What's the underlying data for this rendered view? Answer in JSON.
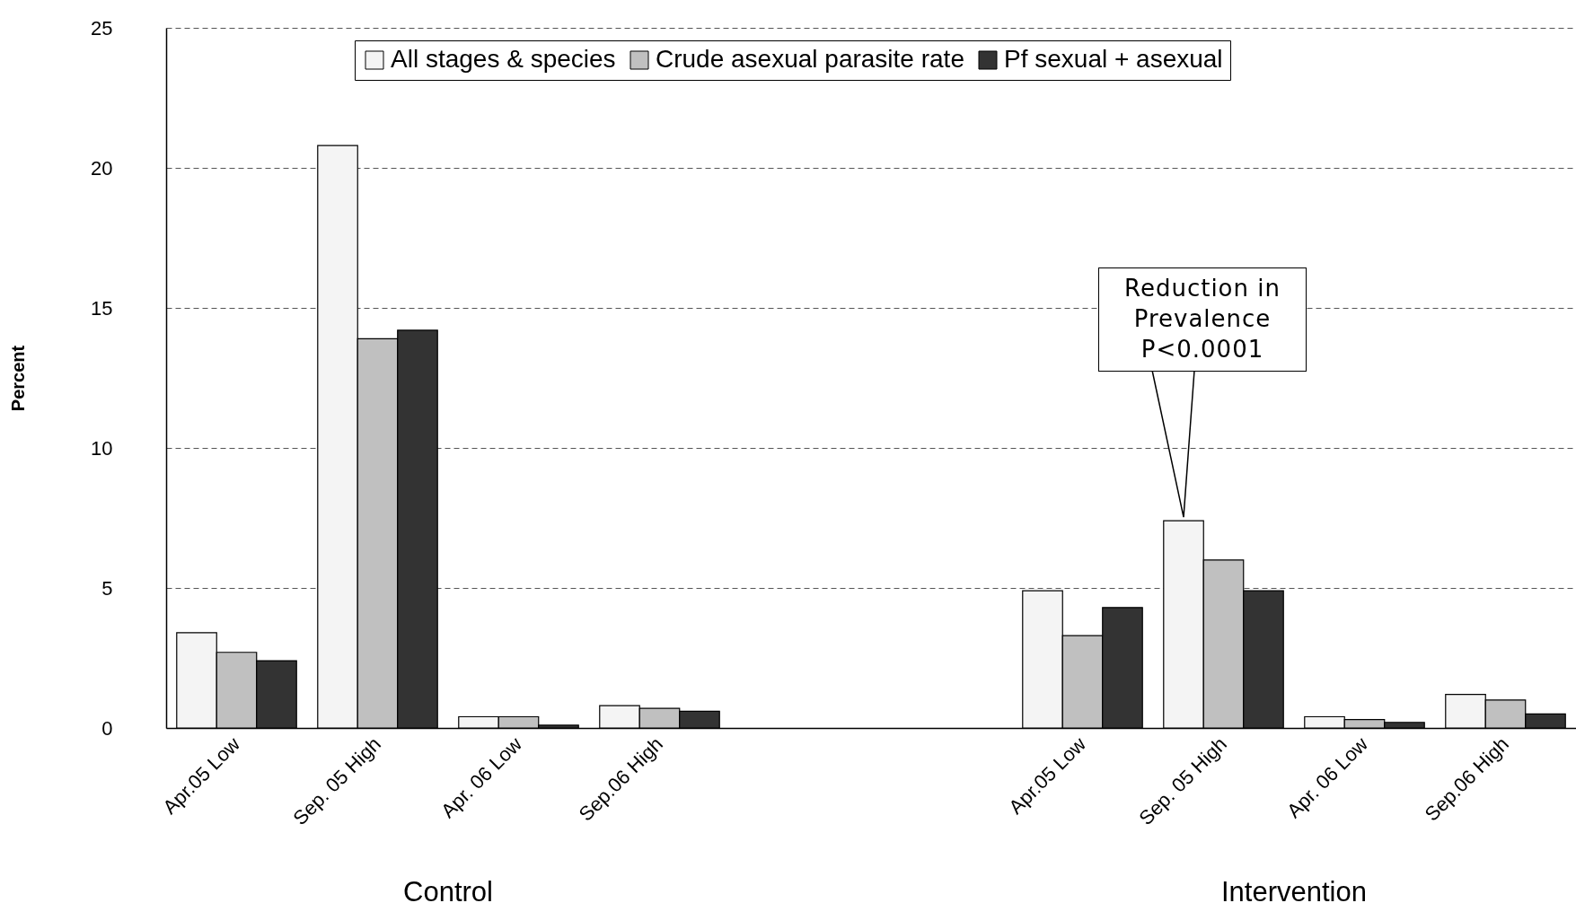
{
  "chart_data": {
    "type": "bar",
    "ylabel": "Percent",
    "categories": [
      "Apr.05 Low",
      "Sep. 05 High",
      "Apr. 06 Low",
      "Sep.06 High",
      null,
      null,
      "Apr.05 Low",
      "Sep. 05 High",
      "Apr. 06 Low",
      "Sep.06 High"
    ],
    "series": [
      {
        "name": "All stages & species",
        "color": "#f4f4f4",
        "values": [
          3.4,
          20.8,
          0.4,
          0.8,
          null,
          null,
          4.9,
          7.4,
          0.4,
          1.2
        ]
      },
      {
        "name": "Crude asexual parasite rate",
        "color": "#c0c0c0",
        "values": [
          2.7,
          13.9,
          0.4,
          0.7,
          null,
          null,
          3.3,
          6.0,
          0.3,
          1.0
        ]
      },
      {
        "name": "Pf sexual + asexual",
        "color": "#333333",
        "values": [
          2.4,
          14.2,
          0.1,
          0.6,
          null,
          null,
          4.3,
          4.9,
          0.2,
          0.5
        ]
      }
    ],
    "ylim": [
      0,
      25
    ],
    "yticks": [
      0,
      5,
      10,
      15,
      20,
      25
    ],
    "grid": "y",
    "legend": "top",
    "annotations": [
      "Control",
      "Intervention",
      "Reduction in Prevalence P<0.0001"
    ]
  }
}
